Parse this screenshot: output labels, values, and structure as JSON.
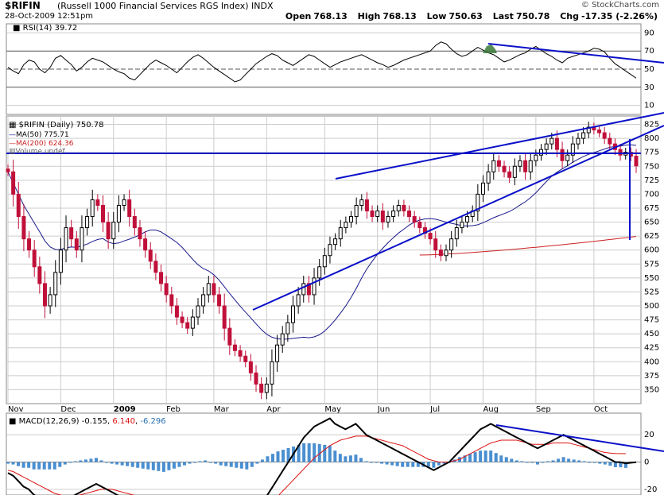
{
  "header": {
    "symbol": "$RIFIN",
    "description": "(Russell 1000 Financial Services RGS Index)",
    "exchange": "INDX",
    "watermark": "© StockCharts.com",
    "datetime": "28-Oct-2009 12:51pm",
    "open_label": "Open",
    "open": "768.13",
    "high_label": "High",
    "high": "768.13",
    "low_label": "Low",
    "low": "750.63",
    "last_label": "Last",
    "last": "750.78",
    "chg_label": "Chg",
    "chg": "-17.35 (-2.26%)"
  },
  "colors": {
    "up": "#000000",
    "down": "#c0103a",
    "ma50": "#1a1a8c",
    "ma200": "#cc2222",
    "trend": "#0a10c8",
    "hist": "#4a8fd0",
    "grid": "#cccccc"
  },
  "chart_data": [
    {
      "type": "line",
      "panel": "RSI",
      "title": "RSI(14) 39.72",
      "value": 39.72,
      "ylim": [
        0,
        100
      ],
      "y_ticks": [
        "90",
        "70",
        "50",
        "30",
        "10"
      ],
      "reference_lines": [
        70,
        50,
        30
      ],
      "series": [
        {
          "name": "RSI(14)",
          "values": [
            52,
            48,
            45,
            55,
            60,
            58,
            50,
            46,
            52,
            62,
            65,
            60,
            55,
            48,
            52,
            58,
            62,
            60,
            58,
            54,
            50,
            47,
            45,
            40,
            38,
            44,
            50,
            56,
            60,
            57,
            54,
            50,
            46,
            52,
            58,
            63,
            66,
            62,
            57,
            52,
            48,
            44,
            40,
            36,
            38,
            44,
            50,
            56,
            60,
            64,
            67,
            65,
            60,
            57,
            54,
            58,
            62,
            66,
            64,
            60,
            56,
            52,
            55,
            58,
            60,
            62,
            64,
            66,
            63,
            60,
            57,
            55,
            52,
            54,
            57,
            60,
            62,
            64,
            66,
            68,
            70,
            76,
            80,
            78,
            72,
            67,
            64,
            66,
            70,
            74,
            71,
            68,
            66,
            62,
            58,
            60,
            63,
            66,
            68,
            72,
            75,
            71,
            67,
            64,
            60,
            57,
            62,
            64,
            66,
            68,
            70,
            73,
            72,
            69,
            62,
            56,
            52,
            48,
            44,
            40
          ]
        }
      ],
      "grid": true
    },
    {
      "type": "candlestick",
      "panel": "Price",
      "title": "$RIFIN (Daily) 750.78",
      "ylim": [
        325,
        840
      ],
      "y_ticks": [
        "825",
        "800",
        "775",
        "750",
        "725",
        "700",
        "675",
        "650",
        "625",
        "600",
        "575",
        "550",
        "525",
        "500",
        "475",
        "450",
        "425",
        "400",
        "375",
        "350"
      ],
      "x_labels": [
        "Nov",
        "Dec",
        "2009",
        "Feb",
        "Mar",
        "Apr",
        "May",
        "Jun",
        "Jul",
        "Aug",
        "Sep",
        "Oct"
      ],
      "x_label_pos": [
        0,
        10,
        20,
        30,
        39,
        49,
        60,
        70,
        80,
        90,
        100,
        111
      ],
      "n_days": 120,
      "close": [
        740,
        700,
        660,
        620,
        600,
        570,
        540,
        500,
        520,
        560,
        600,
        640,
        620,
        600,
        640,
        660,
        690,
        680,
        650,
        620,
        650,
        680,
        690,
        660,
        640,
        620,
        600,
        580,
        560,
        540,
        520,
        500,
        480,
        470,
        460,
        480,
        500,
        520,
        540,
        520,
        500,
        460,
        430,
        420,
        410,
        400,
        380,
        360,
        345,
        360,
        400,
        430,
        450,
        470,
        500,
        520,
        540,
        520,
        550,
        570,
        590,
        610,
        620,
        640,
        650,
        660,
        680,
        690,
        670,
        660,
        670,
        650,
        660,
        670,
        680,
        670,
        660,
        650,
        640,
        630,
        620,
        600,
        590,
        600,
        620,
        640,
        650,
        660,
        670,
        700,
        720,
        740,
        760,
        750,
        740,
        730,
        750,
        760,
        740,
        760,
        770,
        780,
        790,
        800,
        780,
        760,
        770,
        790,
        800,
        810,
        820,
        815,
        810,
        800,
        790,
        780,
        770,
        775,
        768,
        750.78
      ],
      "legend": [
        {
          "label": "MA(50) 775.71",
          "name": "MA(50)",
          "value": 775.71,
          "color_key": "ma50"
        },
        {
          "label": "MA(200) 624.36",
          "name": "MA(200)",
          "value": 624.36,
          "color_key": "ma200"
        },
        {
          "label": "Volume undef",
          "name": "Volume",
          "value": "undef"
        }
      ],
      "ma200_range": [
        591,
        624.36
      ],
      "horizontal_line": 750,
      "grid": true
    },
    {
      "type": "line",
      "panel": "MACD",
      "title": "MACD(12,26,9)",
      "macd": -0.155,
      "signal": 6.14,
      "histogram": -6.296,
      "macd_text": "-0.155",
      "signal_text": "6.140",
      "hist_text": "-6.296",
      "y_ticks": [
        "20",
        "0",
        "-20"
      ],
      "ylim": [
        -30,
        30
      ],
      "series": [
        {
          "name": "MACD",
          "values": [
            -8,
            -10,
            -14,
            -18,
            -20,
            -24,
            -26,
            -28,
            -30,
            -32,
            -30,
            -28,
            -26,
            -24,
            -22,
            -20,
            -18,
            -16,
            -18,
            -20,
            -22,
            -24,
            -26,
            -28,
            -30,
            -32,
            -34,
            -36,
            -38,
            -40,
            -42,
            -40,
            -38,
            -36,
            -34,
            -32,
            -30,
            -28,
            -26,
            -28,
            -30,
            -32,
            -34,
            -36,
            -38,
            -40,
            -42,
            -40,
            -36,
            -30,
            -24,
            -18,
            -12,
            -6,
            0,
            6,
            12,
            18,
            22,
            26,
            28,
            30,
            32,
            28,
            26,
            24,
            26,
            28,
            24,
            20,
            18,
            16,
            14,
            12,
            10,
            8,
            6,
            4,
            2,
            0,
            -2,
            -4,
            -6,
            -4,
            -2,
            0,
            4,
            8,
            12,
            16,
            20,
            24,
            26,
            28,
            26,
            24,
            22,
            20,
            18,
            16,
            14,
            12,
            10,
            12,
            14,
            16,
            18,
            20,
            18,
            16,
            14,
            12,
            10,
            8,
            6,
            4,
            2,
            0,
            -0.155,
            -1,
            -0.5,
            -0.155
          ]
        },
        {
          "name": "Signal",
          "values": [
            -6,
            -7,
            -9,
            -11,
            -13,
            -15,
            -17,
            -19,
            -21,
            -23,
            -24,
            -25,
            -25,
            -25,
            -24,
            -23,
            -22,
            -21,
            -20,
            -20,
            -20,
            -21,
            -22,
            -23,
            -24,
            -25,
            -26,
            -27,
            -28,
            -29,
            -30,
            -30,
            -30,
            -30,
            -30,
            -30,
            -30,
            -29,
            -28,
            -28,
            -28,
            -28,
            -29,
            -30,
            -31,
            -32,
            -33,
            -34,
            -34,
            -33,
            -31,
            -28,
            -25,
            -21,
            -17,
            -13,
            -9,
            -5,
            -1,
            3,
            6,
            9,
            12,
            14,
            16,
            17,
            18,
            19,
            19,
            19,
            18,
            17,
            16,
            15,
            14,
            13,
            12,
            10,
            8,
            6,
            4,
            2,
            1,
            0,
            0,
            0,
            1,
            2,
            4,
            6,
            8,
            10,
            12,
            14,
            15,
            16,
            16,
            16,
            16,
            15,
            14,
            13,
            13,
            13,
            13,
            14,
            14,
            14,
            14,
            13,
            12,
            11,
            10,
            9,
            8,
            7,
            6.5,
            6.3,
            6.2,
            6.14
          ]
        }
      ],
      "grid": true
    }
  ]
}
